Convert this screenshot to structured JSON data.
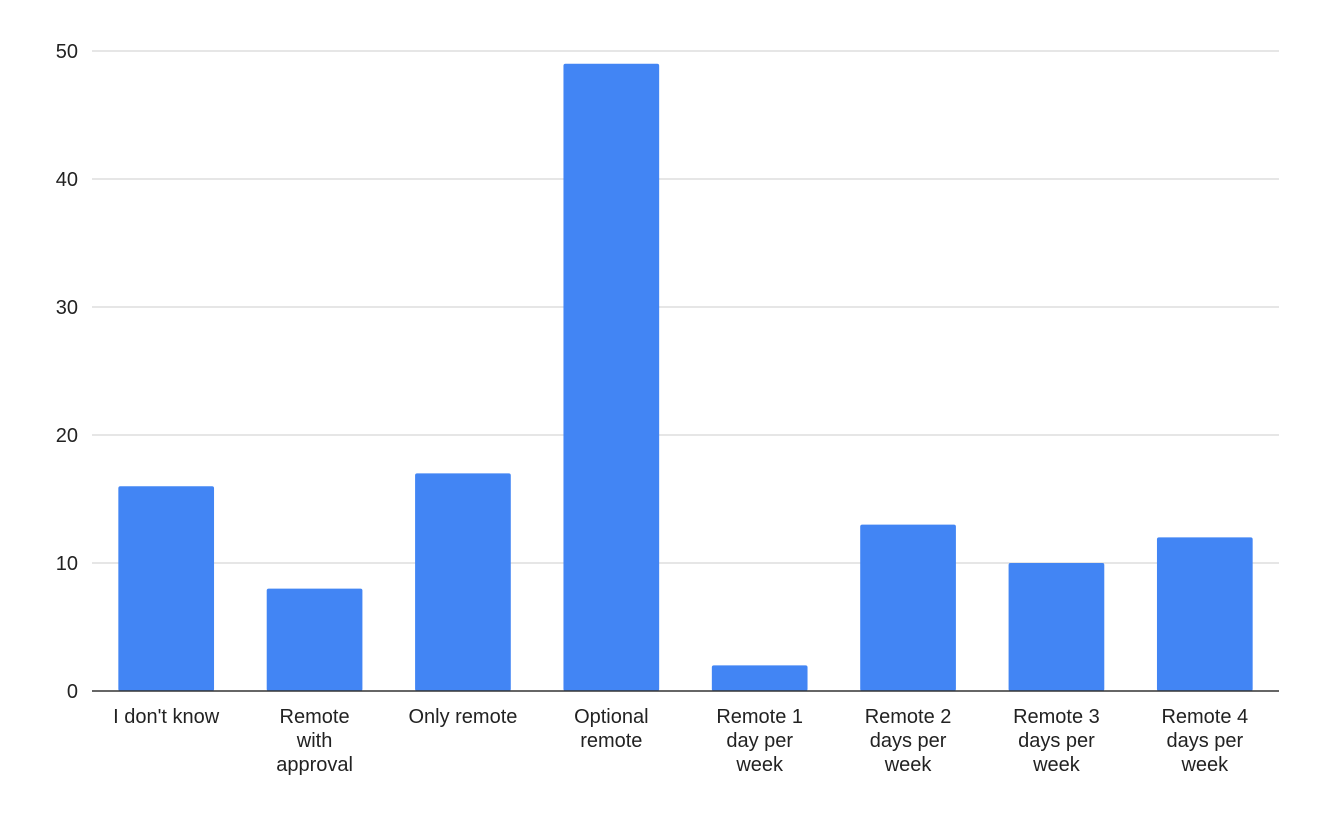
{
  "chart_data": {
    "type": "bar",
    "title": "",
    "xlabel": "",
    "ylabel": "",
    "categories": [
      "I don't know",
      "Remote with approval",
      "Only remote",
      "Optional remote",
      "Remote 1 day per week",
      "Remote 2 days per week",
      "Remote 3 days per week",
      "Remote 4 days per week"
    ],
    "category_lines": [
      [
        "I don't know"
      ],
      [
        "Remote",
        "with",
        "approval"
      ],
      [
        "Only remote"
      ],
      [
        "Optional",
        "remote"
      ],
      [
        "Remote 1",
        "day per",
        "week"
      ],
      [
        "Remote 2",
        "days per",
        "week"
      ],
      [
        "Remote 3",
        "days per",
        "week"
      ],
      [
        "Remote 4",
        "days per",
        "week"
      ]
    ],
    "values": [
      16,
      8,
      17,
      49,
      2,
      13,
      10,
      12
    ],
    "ylim": [
      0,
      50
    ],
    "yticks": [
      "0",
      "10",
      "20",
      "30",
      "40",
      "50"
    ],
    "grid": true,
    "legend": "none",
    "bar_color": "#4285f4"
  }
}
